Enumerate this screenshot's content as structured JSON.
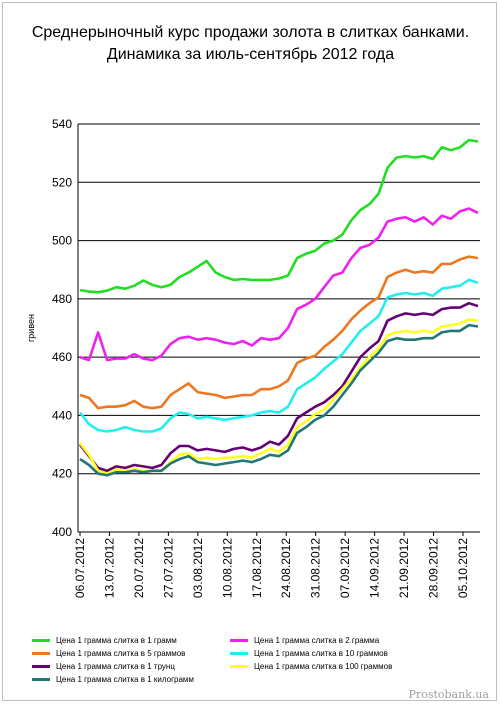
{
  "title": "Среднерыночный курс продажи золота в слитках банками. Динамика за июль-сентябрь 2012 года",
  "watermark": "Prostobank.ua",
  "chart_data": {
    "type": "line",
    "title": "Среднерыночный курс продажи золота в слитках банками. Динамика за июль-сентябрь 2012 года",
    "ylabel": "гривен",
    "xlabel": "",
    "ylim": [
      400,
      540
    ],
    "yticks": [
      400,
      420,
      440,
      460,
      480,
      500,
      520,
      540
    ],
    "grid": true,
    "legend_position": "bottom",
    "x_tick_labels": [
      "06.07.2012",
      "13.07.2012",
      "20.07.2012",
      "27.07.2012",
      "03.08.2012",
      "10.08.2012",
      "17.08.2012",
      "24.08.2012",
      "31.08.2012",
      "07.09.2012",
      "14.09.2012",
      "21.09.2012",
      "28.09.2012",
      "05.10.2012"
    ],
    "series": [
      {
        "name": "Цена 1 грамма слитка в 1 грамм",
        "color": "#22dd22",
        "values": [
          483.0,
          482.5,
          482.3,
          482.8,
          484.0,
          483.5,
          484.5,
          486.3,
          484.8,
          484.0,
          484.8,
          487.5,
          489.0,
          491.0,
          493.0,
          489.0,
          487.5,
          486.5,
          486.8,
          486.5,
          486.5,
          486.5,
          487.0,
          488.0,
          494.0,
          495.5,
          496.5,
          499.0,
          500.0,
          502.0,
          507.0,
          510.5,
          512.5,
          516.0,
          525.0,
          528.5,
          529.0,
          528.5,
          529.0,
          528.0,
          532.0,
          531.0,
          532.0,
          534.5,
          534.0
        ]
      },
      {
        "name": "Цена 1 грамма слитка в 2 грамма",
        "color": "#ee22ee",
        "values": [
          460.0,
          459.0,
          468.5,
          459.0,
          459.5,
          459.5,
          461.0,
          459.5,
          459.0,
          460.5,
          464.5,
          466.5,
          467.0,
          466.0,
          466.5,
          466.0,
          465.0,
          464.5,
          465.5,
          464.0,
          466.5,
          466.0,
          466.5,
          470.0,
          476.5,
          478.0,
          480.0,
          484.0,
          488.0,
          489.0,
          494.0,
          497.5,
          498.5,
          501.0,
          506.5,
          507.5,
          508.0,
          506.5,
          508.0,
          505.5,
          508.5,
          507.5,
          510.0,
          511.0,
          509.5
        ]
      },
      {
        "name": "Цена 1 грамма слитка в 5 граммов",
        "color": "#ee7722",
        "values": [
          447.0,
          446.0,
          442.5,
          443.0,
          443.0,
          443.5,
          445.0,
          443.0,
          442.5,
          443.0,
          447.0,
          449.0,
          451.0,
          448.0,
          447.5,
          447.0,
          446.0,
          446.5,
          447.0,
          447.0,
          449.0,
          449.0,
          450.0,
          452.0,
          458.0,
          459.5,
          460.5,
          463.5,
          466.0,
          469.0,
          473.0,
          476.0,
          478.5,
          480.5,
          487.5,
          489.0,
          490.0,
          489.0,
          489.5,
          489.0,
          492.0,
          492.0,
          493.5,
          494.5,
          494.0
        ]
      },
      {
        "name": "Цена 1 грамма слитка в 10 граммов",
        "color": "#22eeee",
        "values": [
          441.0,
          437.0,
          435.0,
          434.5,
          435.0,
          436.0,
          435.0,
          434.5,
          434.5,
          435.5,
          439.0,
          441.0,
          440.5,
          439.0,
          439.5,
          439.0,
          438.5,
          439.0,
          439.5,
          440.0,
          441.0,
          441.5,
          441.0,
          443.0,
          449.0,
          451.0,
          453.0,
          456.0,
          458.5,
          461.0,
          465.0,
          469.0,
          471.5,
          474.0,
          480.5,
          481.5,
          482.0,
          481.5,
          482.0,
          481.0,
          483.5,
          484.0,
          484.5,
          486.5,
          485.5
        ]
      },
      {
        "name": "Цена 1 грамма слитка в 1 трунц",
        "color": "#660077",
        "values": [
          430.0,
          426.0,
          422.0,
          421.0,
          422.5,
          422.0,
          423.0,
          422.5,
          422.0,
          423.0,
          427.0,
          429.5,
          429.5,
          428.0,
          428.5,
          428.0,
          427.5,
          428.5,
          429.0,
          428.0,
          429.0,
          431.0,
          430.0,
          433.0,
          439.0,
          441.0,
          443.0,
          444.5,
          447.0,
          450.0,
          455.0,
          460.0,
          463.0,
          465.5,
          472.5,
          474.0,
          475.0,
          474.5,
          475.0,
          474.5,
          476.5,
          477.0,
          477.0,
          478.5,
          477.5
        ]
      },
      {
        "name": "Цена 1 грамма слитка в 100 граммов",
        "color": "#ffff22",
        "values": [
          430.5,
          426.5,
          421.0,
          420.0,
          421.5,
          421.0,
          421.5,
          421.0,
          421.0,
          421.0,
          424.0,
          426.5,
          427.0,
          425.0,
          425.5,
          425.0,
          425.5,
          425.5,
          426.0,
          425.5,
          427.0,
          428.5,
          427.5,
          430.0,
          436.0,
          438.0,
          440.5,
          442.0,
          445.5,
          449.0,
          452.5,
          456.5,
          460.0,
          463.0,
          467.5,
          468.5,
          469.0,
          468.5,
          469.0,
          468.5,
          470.5,
          471.0,
          471.5,
          473.0,
          472.5
        ]
      },
      {
        "name": "Цена 1 грамма слитка в 1 килограмм",
        "color": "#227777",
        "values": [
          425.0,
          423.0,
          420.0,
          419.5,
          420.5,
          420.5,
          421.0,
          420.5,
          421.0,
          421.0,
          423.5,
          425.0,
          426.0,
          424.0,
          423.5,
          423.0,
          423.5,
          424.0,
          424.5,
          424.0,
          425.0,
          426.5,
          426.0,
          428.0,
          434.0,
          436.0,
          438.5,
          440.0,
          443.0,
          447.0,
          451.0,
          455.5,
          458.5,
          461.5,
          465.5,
          466.5,
          466.0,
          466.0,
          466.5,
          466.5,
          468.5,
          469.0,
          469.0,
          471.0,
          470.5
        ]
      }
    ]
  }
}
